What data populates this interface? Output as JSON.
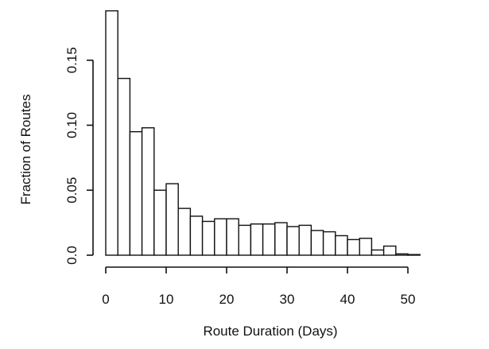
{
  "chart_data": {
    "type": "bar",
    "title": "",
    "xlabel": "Route Duration (Days)",
    "ylabel": "Fraction of Routes",
    "xlim": [
      0,
      52
    ],
    "ylim": [
      0,
      0.19
    ],
    "bin_width": 2,
    "x_ticks": [
      0,
      10,
      20,
      30,
      40,
      50
    ],
    "x_tick_labels": [
      "0",
      "10",
      "20",
      "30",
      "40",
      "50"
    ],
    "y_ticks": [
      0.0,
      0.05,
      0.1,
      0.15
    ],
    "y_tick_labels": [
      "0.0",
      "0.05",
      "0.10",
      "0.15"
    ],
    "bins": [
      {
        "x0": 0,
        "x1": 2,
        "value": 0.188
      },
      {
        "x0": 2,
        "x1": 4,
        "value": 0.136
      },
      {
        "x0": 4,
        "x1": 6,
        "value": 0.095
      },
      {
        "x0": 6,
        "x1": 8,
        "value": 0.098
      },
      {
        "x0": 8,
        "x1": 10,
        "value": 0.05
      },
      {
        "x0": 10,
        "x1": 12,
        "value": 0.055
      },
      {
        "x0": 12,
        "x1": 14,
        "value": 0.036
      },
      {
        "x0": 14,
        "x1": 16,
        "value": 0.03
      },
      {
        "x0": 16,
        "x1": 18,
        "value": 0.026
      },
      {
        "x0": 18,
        "x1": 20,
        "value": 0.028
      },
      {
        "x0": 20,
        "x1": 22,
        "value": 0.028
      },
      {
        "x0": 22,
        "x1": 24,
        "value": 0.023
      },
      {
        "x0": 24,
        "x1": 26,
        "value": 0.024
      },
      {
        "x0": 26,
        "x1": 28,
        "value": 0.024
      },
      {
        "x0": 28,
        "x1": 30,
        "value": 0.025
      },
      {
        "x0": 30,
        "x1": 32,
        "value": 0.022
      },
      {
        "x0": 32,
        "x1": 34,
        "value": 0.023
      },
      {
        "x0": 34,
        "x1": 36,
        "value": 0.019
      },
      {
        "x0": 36,
        "x1": 38,
        "value": 0.018
      },
      {
        "x0": 38,
        "x1": 40,
        "value": 0.015
      },
      {
        "x0": 40,
        "x1": 42,
        "value": 0.012
      },
      {
        "x0": 42,
        "x1": 44,
        "value": 0.013
      },
      {
        "x0": 44,
        "x1": 46,
        "value": 0.004
      },
      {
        "x0": 46,
        "x1": 48,
        "value": 0.007
      },
      {
        "x0": 48,
        "x1": 50,
        "value": 0.001
      },
      {
        "x0": 50,
        "x1": 52,
        "value": 0.0005
      }
    ],
    "grid": false,
    "legend": "none"
  }
}
